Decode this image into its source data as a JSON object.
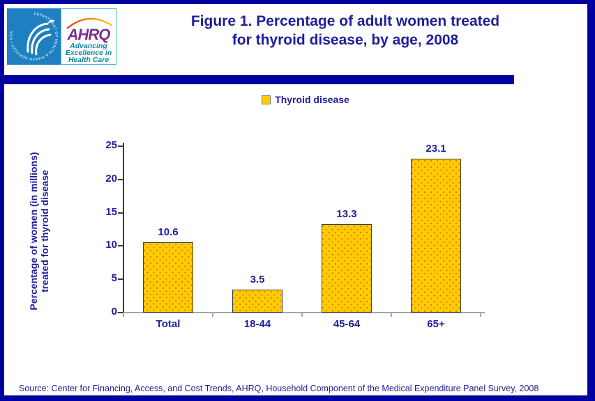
{
  "page": {
    "title_line1": "Figure 1. Percentage of adult women treated",
    "title_line2": "for thyroid disease, by age, 2008",
    "source": "Source: Center for Financing, Access, and Cost Trends, AHRQ, Household Component of the Medical Expenditure Panel Survey,  2008"
  },
  "logo": {
    "hhs_ring_text": "DEPARTMENT OF HEALTH & HUMAN SERVICES • USA",
    "acronym": "AHRQ",
    "tagline": [
      "Advancing",
      "Excellence in",
      "Health Care"
    ]
  },
  "legend": {
    "label": "Thyroid disease"
  },
  "chart_data": {
    "type": "bar",
    "title": "Figure 1. Percentage of adult women treated for thyroid disease, by age, 2008",
    "series_name": "Thyroid disease",
    "categories": [
      "Total",
      "18-44",
      "45-64",
      "65+"
    ],
    "values": [
      10.6,
      3.5,
      13.3,
      23.1
    ],
    "value_labels": [
      "10.6",
      "3.5",
      "13.3",
      "23.1"
    ],
    "xlabel": "",
    "ylabel": "Percentage of women (in millions) treated for thyroid disease",
    "ylabel_lines": [
      "Percentage of women (in millions)",
      "treated for thyroid disease"
    ],
    "ylim": [
      0,
      25
    ],
    "yticks": [
      0,
      5,
      10,
      15,
      20,
      25
    ],
    "grid": false,
    "legend_position": "top-center"
  },
  "colors": {
    "navy_text": "#1E1E9C",
    "navy_bar": "#0000A0",
    "bar_fill": "#FFCC00",
    "bar_dots": "#E8761B",
    "axis_gray": "#A6A6A6",
    "logo_blue": "#1E80C0",
    "logo_purple": "#7B2E8E",
    "logo_teal": "#0B87A8"
  }
}
